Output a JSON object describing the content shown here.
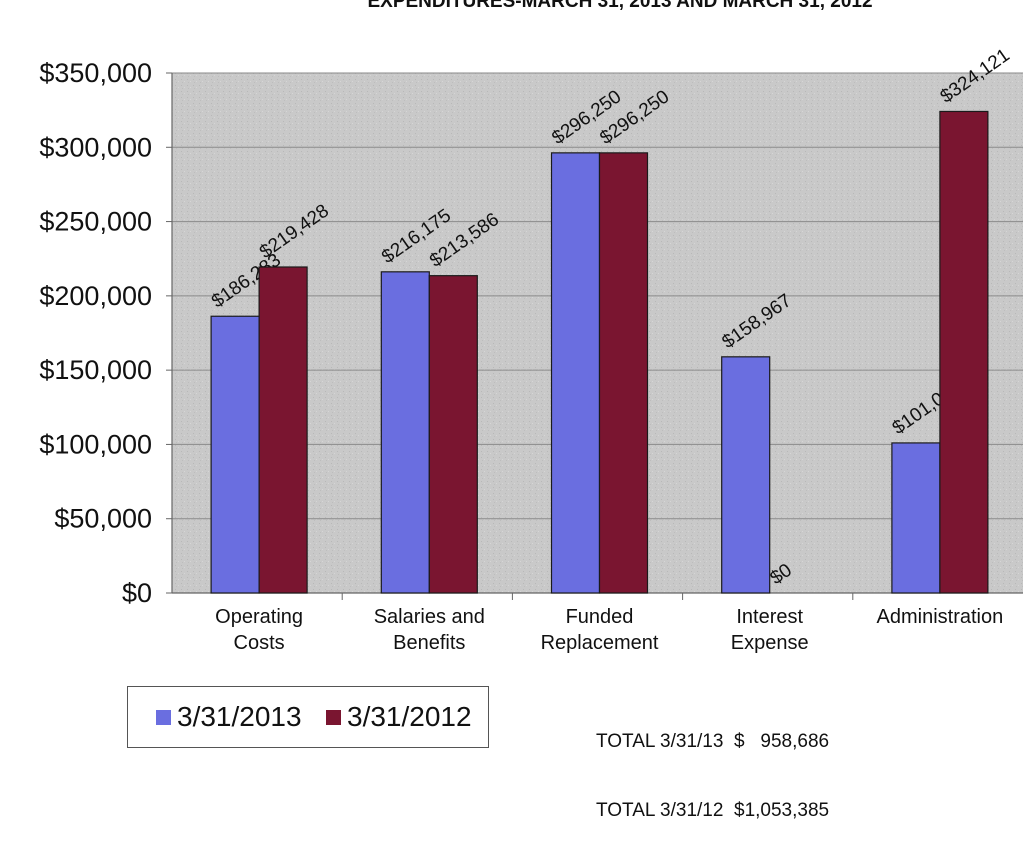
{
  "title": "EXPENDITURES-MARCH 31, 2013 AND MARCH 31, 2012",
  "colors": {
    "series_2013": "#6a6ee0",
    "series_2012": "#7a1530",
    "plot_bg": "#c9c9c9"
  },
  "legend": [
    {
      "label": "3/31/2013",
      "color": "#6a6ee0"
    },
    {
      "label": "3/31/2012",
      "color": "#7a1530"
    }
  ],
  "totals": [
    "TOTAL 3/31/13  $   958,686",
    "TOTAL 3/31/12  $1,053,385"
  ],
  "chart_data": {
    "type": "bar",
    "title": "EXPENDITURES-MARCH 31, 2013 AND MARCH 31, 2012",
    "categories": [
      [
        "Operating",
        "Costs"
      ],
      [
        "Salaries and",
        "Benefits"
      ],
      [
        "Funded",
        "Replacement"
      ],
      [
        "Interest",
        "Expense"
      ],
      [
        "Administration"
      ]
    ],
    "series": [
      {
        "name": "3/31/2013",
        "color": "#6a6ee0",
        "values": [
          186283,
          216175,
          296250,
          158967,
          101011
        ],
        "labels": [
          "$186,283",
          "$216,175",
          "$296,250",
          "$158,967",
          "$101,011"
        ]
      },
      {
        "name": "3/31/2012",
        "color": "#7a1530",
        "values": [
          219428,
          213586,
          296250,
          0,
          324121
        ],
        "labels": [
          "$219,428",
          "$213,586",
          "$296,250",
          "$0",
          "$324,121"
        ]
      }
    ],
    "ylim": [
      0,
      350000
    ],
    "yticks": [
      0,
      50000,
      100000,
      150000,
      200000,
      250000,
      300000,
      350000
    ],
    "ytick_labels": [
      "$0",
      "$50,000",
      "$100,000",
      "$150,000",
      "$200,000",
      "$250,000",
      "$300,000",
      "$350,000"
    ],
    "grid": true,
    "legend_position": "bottom-left"
  }
}
